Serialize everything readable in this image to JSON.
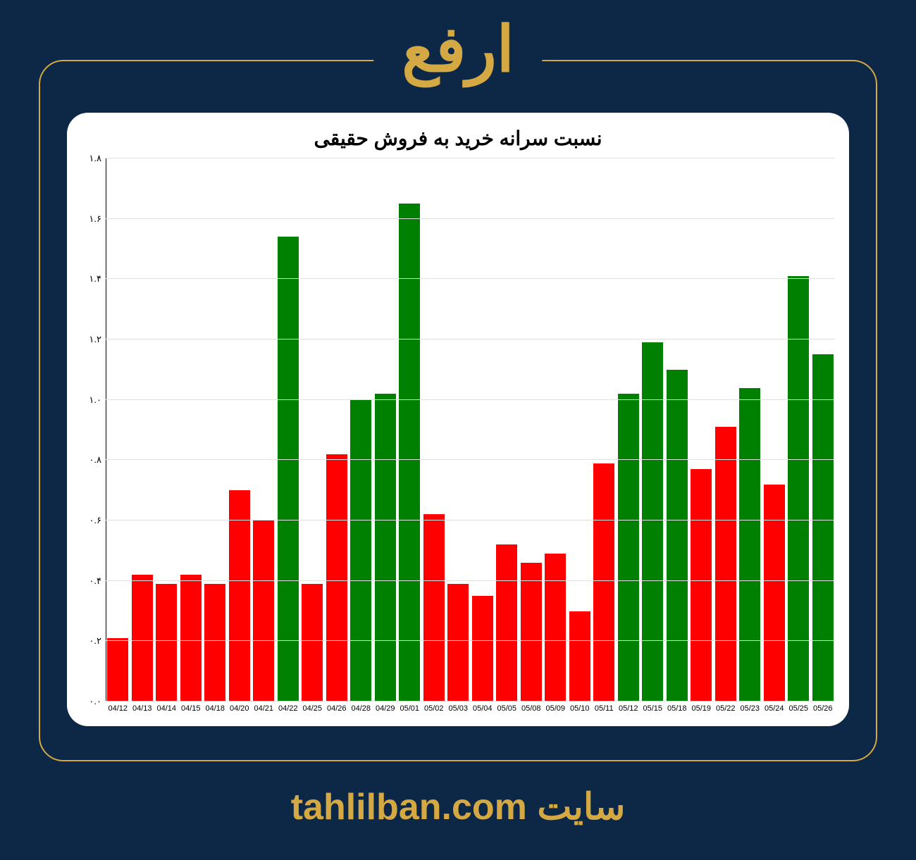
{
  "header": {
    "title": "ارفع",
    "title_color": "#d4a843",
    "title_fontsize": 90
  },
  "frame": {
    "border_color": "#d4a843",
    "border_radius": 35,
    "background": "#0d2847"
  },
  "chart": {
    "type": "bar",
    "title": "نسبت سرانه خرید به فروش حقیقی",
    "title_fontsize": 28,
    "title_color": "#000000",
    "card_background": "#ffffff",
    "card_border_radius": 30,
    "grid_color": "#e0e0e0",
    "axis_color": "#000000",
    "y_axis": {
      "min": 0.0,
      "max": 1.8,
      "tick_step": 0.2,
      "tick_labels": [
        "۰.۰",
        "۰.۲",
        "۰.۴",
        "۰.۶",
        "۰.۸",
        "۱.۰",
        "۱.۲",
        "۱.۴",
        "۱.۶",
        "۱.۸"
      ],
      "label_fontsize": 13
    },
    "x_axis": {
      "labels": [
        "04/12",
        "04/13",
        "04/14",
        "04/15",
        "04/18",
        "04/20",
        "04/21",
        "04/22",
        "04/25",
        "04/26",
        "04/28",
        "04/29",
        "05/01",
        "05/02",
        "05/03",
        "05/04",
        "05/05",
        "05/08",
        "05/09",
        "05/10",
        "05/11",
        "05/12",
        "05/15",
        "05/18",
        "05/19",
        "05/22",
        "05/23",
        "05/24",
        "05/25",
        "05/26"
      ],
      "label_fontsize": 11
    },
    "bars": [
      {
        "value": 0.21,
        "color": "#ff0000"
      },
      {
        "value": 0.42,
        "color": "#ff0000"
      },
      {
        "value": 0.39,
        "color": "#ff0000"
      },
      {
        "value": 0.42,
        "color": "#ff0000"
      },
      {
        "value": 0.39,
        "color": "#ff0000"
      },
      {
        "value": 0.7,
        "color": "#ff0000"
      },
      {
        "value": 0.6,
        "color": "#ff0000"
      },
      {
        "value": 1.54,
        "color": "#008000"
      },
      {
        "value": 0.39,
        "color": "#ff0000"
      },
      {
        "value": 0.82,
        "color": "#ff0000"
      },
      {
        "value": 1.0,
        "color": "#008000"
      },
      {
        "value": 1.02,
        "color": "#008000"
      },
      {
        "value": 1.65,
        "color": "#008000"
      },
      {
        "value": 0.62,
        "color": "#ff0000"
      },
      {
        "value": 0.39,
        "color": "#ff0000"
      },
      {
        "value": 0.35,
        "color": "#ff0000"
      },
      {
        "value": 0.52,
        "color": "#ff0000"
      },
      {
        "value": 0.46,
        "color": "#ff0000"
      },
      {
        "value": 0.49,
        "color": "#ff0000"
      },
      {
        "value": 0.3,
        "color": "#ff0000"
      },
      {
        "value": 0.79,
        "color": "#ff0000"
      },
      {
        "value": 1.02,
        "color": "#008000"
      },
      {
        "value": 1.19,
        "color": "#008000"
      },
      {
        "value": 1.1,
        "color": "#008000"
      },
      {
        "value": 0.77,
        "color": "#ff0000"
      },
      {
        "value": 0.91,
        "color": "#ff0000"
      },
      {
        "value": 1.04,
        "color": "#008000"
      },
      {
        "value": 0.72,
        "color": "#ff0000"
      },
      {
        "value": 1.41,
        "color": "#008000"
      },
      {
        "value": 1.15,
        "color": "#008000"
      }
    ],
    "bar_width_ratio": 0.88
  },
  "footer": {
    "prefix": "سایت ",
    "url": "tahlilban.com",
    "color": "#d4a843",
    "fontsize": 52
  }
}
